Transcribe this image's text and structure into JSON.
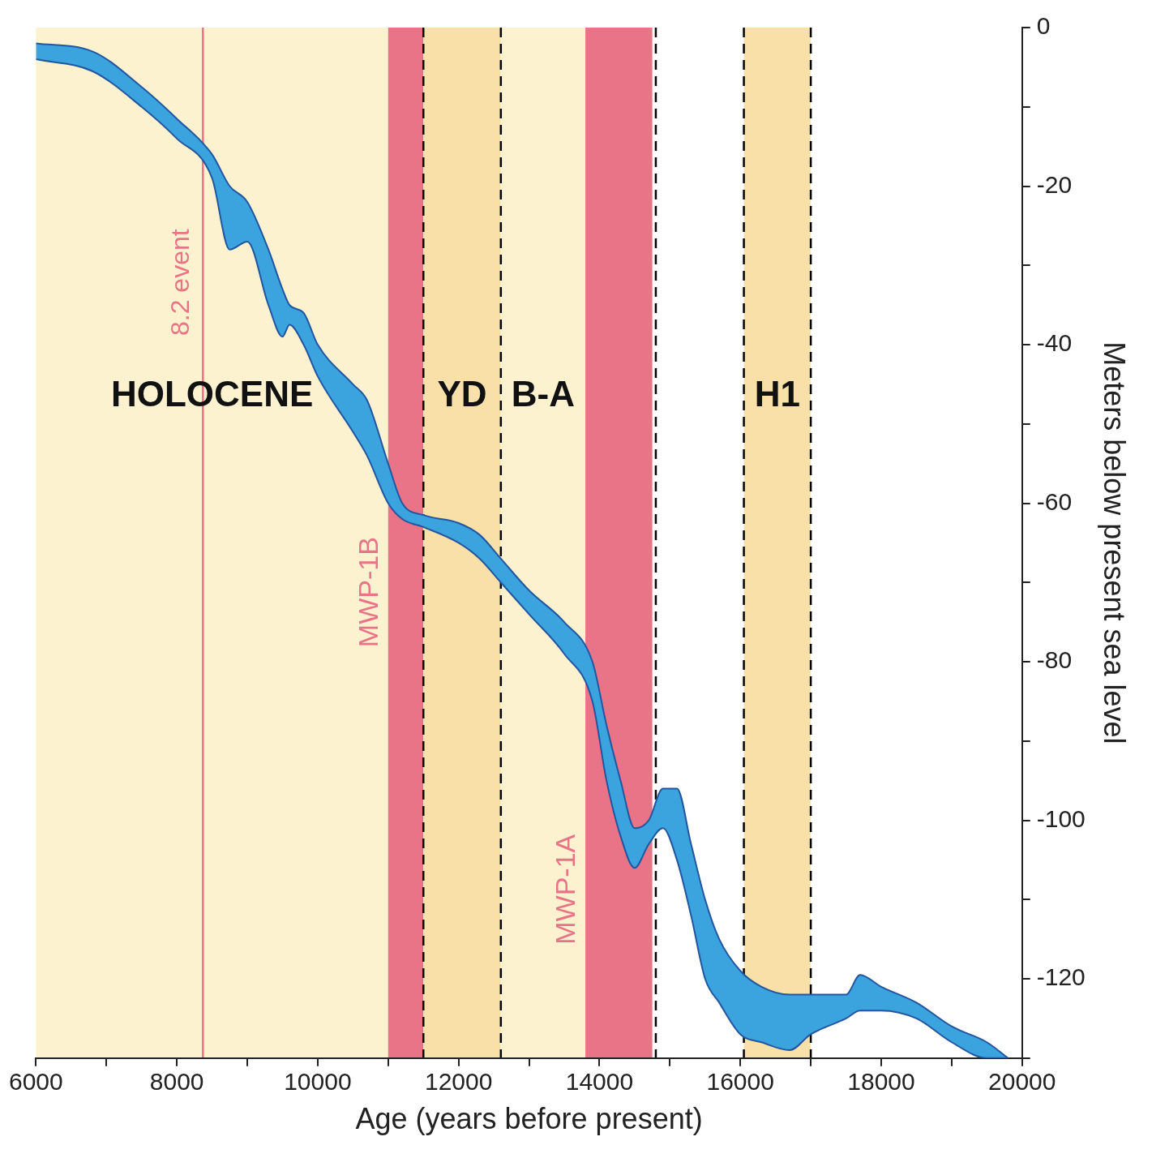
{
  "chart_data": {
    "type": "line",
    "xlabel": "Age (years before present)",
    "ylabel": "Meters below present sea level",
    "xlim": [
      6000,
      20000
    ],
    "xticks": [
      6000,
      {
        "value": 7000,
        "label": null
      },
      8000,
      {
        "value": 9000,
        "label": null
      },
      10000,
      {
        "value": 11000,
        "label": null
      },
      12000,
      {
        "value": 13000,
        "label": null
      },
      14000,
      {
        "value": 15000,
        "label": null
      },
      16000,
      {
        "value": 17000,
        "label": null
      },
      18000,
      {
        "value": 19000,
        "label": null
      },
      20000
    ],
    "ylim": [
      -130,
      0
    ],
    "yticks": [
      {
        "value": -130,
        "label": null
      },
      -120,
      {
        "value": -110,
        "label": null
      },
      -100,
      {
        "value": -90,
        "label": null
      },
      -80,
      {
        "value": -70,
        "label": null
      },
      -60,
      {
        "value": -50,
        "label": null
      },
      -40,
      {
        "value": -30,
        "label": null
      },
      -20,
      {
        "value": -10,
        "label": null
      },
      0
    ],
    "x": [
      6000,
      6800,
      7500,
      8000,
      8500,
      8750,
      9000,
      9300,
      9500,
      9600,
      9800,
      10000,
      10500,
      10700,
      11000,
      11200,
      11500,
      12000,
      12300,
      12600,
      13000,
      13500,
      13900,
      14100,
      14300,
      14500,
      14700,
      14900,
      15100,
      15300,
      15500,
      15700,
      16000,
      16300,
      16700,
      17000,
      17500,
      17700,
      18000,
      18500,
      19000,
      19500,
      19800
    ],
    "series": [
      {
        "color": "#2256a0",
        "values": [
          -2,
          -3,
          -7.5,
          -11.5,
          -16,
          -20,
          -22,
          -28,
          -33,
          -35,
          -36,
          -40,
          -45,
          -47,
          -55,
          -60,
          -61.5,
          -62.5,
          -64,
          -67,
          -71,
          -75,
          -80,
          -88,
          -95,
          -101,
          -100,
          -96,
          -96,
          -103,
          -110,
          -115,
          -119,
          -121,
          -122,
          -122,
          -122,
          -119.5,
          -121,
          -123,
          -126,
          -128,
          -130
        ]
      },
      {
        "color": "#2256a0",
        "values": [
          -4,
          -5.5,
          -10,
          -14,
          -19,
          -28,
          -27,
          -35,
          -39,
          -37.5,
          -40,
          -44,
          -51,
          -54,
          -60,
          -62,
          -63,
          -65,
          -67,
          -70,
          -74,
          -79,
          -85,
          -95,
          -102,
          -106,
          -103,
          -101,
          -105,
          -112,
          -120,
          -123,
          -127,
          -128,
          -129,
          -127,
          -125,
          -124,
          -124,
          -125,
          -128,
          -130,
          -130
        ]
      }
    ],
    "bands": [
      {
        "axis": "x",
        "from": 6000,
        "to": 11000,
        "label": "HOLOCENE",
        "color": "#fcf2cf"
      },
      {
        "axis": "x",
        "from": 11000,
        "to": 11500,
        "label": null,
        "color": "#e97487"
      },
      {
        "axis": "x",
        "from": 11500,
        "to": 12600,
        "label": "YD",
        "color": "#f8e0a8"
      },
      {
        "axis": "x",
        "from": 12600,
        "to": 13800,
        "label": "B-A",
        "color": "#fcf2cf"
      },
      {
        "axis": "x",
        "from": 13800,
        "to": 14750,
        "label": null,
        "color": "#e97487"
      },
      {
        "axis": "x",
        "from": 16050,
        "to": 17000,
        "label": "H1",
        "color": "#f8e0a8"
      }
    ],
    "ref_lines": [
      {
        "axis": "x",
        "value": 8370,
        "label": "8.2 event",
        "color": "#e97487",
        "line_style": "solid"
      },
      {
        "axis": "x",
        "value": 11500,
        "label": null,
        "color": "#000000",
        "line_style": "dashed"
      },
      {
        "axis": "x",
        "value": 12600,
        "label": null,
        "color": "#000000",
        "line_style": "dashed"
      },
      {
        "axis": "x",
        "value": 14800,
        "label": null,
        "color": "#000000",
        "line_style": "dashed"
      },
      {
        "axis": "x",
        "value": 16050,
        "label": null,
        "color": "#000000",
        "line_style": "dashed"
      },
      {
        "axis": "x",
        "value": 17000,
        "label": null,
        "color": "#000000",
        "line_style": "dashed"
      }
    ],
    "annotations": [
      "MWP-1B",
      "MWP-1A"
    ],
    "legend": false,
    "grid": false,
    "marker": "none"
  }
}
